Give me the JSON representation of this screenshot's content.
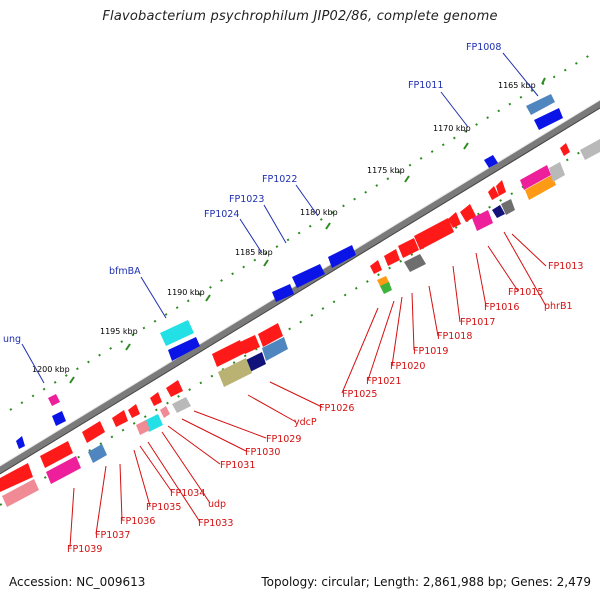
{
  "title": "Flavobacterium psychrophilum JIP02/86, complete genome",
  "footer": {
    "accession": "Accession: NC_009613",
    "stats": "Topology: circular; Length: 2,861,988 bp; Genes: 2,479"
  },
  "colors": {
    "backbone": "#7d7d7d",
    "tick": "#2e8b22",
    "forward_label": "#1f2fb0",
    "reverse_label": "#d41010",
    "gene_red": "#ff1a1a",
    "gene_blue": "#0a14e6",
    "gene_cyan": "#22e0e6",
    "gene_steel": "#4f86c0",
    "gene_magenta": "#ee1f9a",
    "gene_pink": "#f08a94",
    "gene_olive": "#b9b272",
    "gene_navy": "#12137a",
    "gene_gray": "#b9b9b9",
    "gene_darkgray": "#6e6e6e",
    "gene_orange": "#ff9a16",
    "gene_green": "#3cb43c"
  },
  "kbp_labels": [
    "1165 kbp",
    "1170 kbp",
    "1175 kbp",
    "1180 kbp",
    "1185 kbp",
    "1190 kbp",
    "1195 kbp",
    "1200 kbp"
  ],
  "forward_genes": [
    "FP1008",
    "FP1011",
    "FP1022",
    "FP1023",
    "FP1024",
    "bfmBA",
    "ung"
  ],
  "reverse_genes": [
    "FP1013",
    "phrB1",
    "FP1015",
    "FP1016",
    "FP1017",
    "FP1018",
    "FP1019",
    "FP1020",
    "FP1021",
    "FP1025",
    "FP1026",
    "ydcP",
    "FP1029",
    "FP1030",
    "FP1031",
    "udp",
    "FP1033",
    "FP1034",
    "FP1035",
    "FP1036",
    "FP1037",
    "FP1039"
  ]
}
